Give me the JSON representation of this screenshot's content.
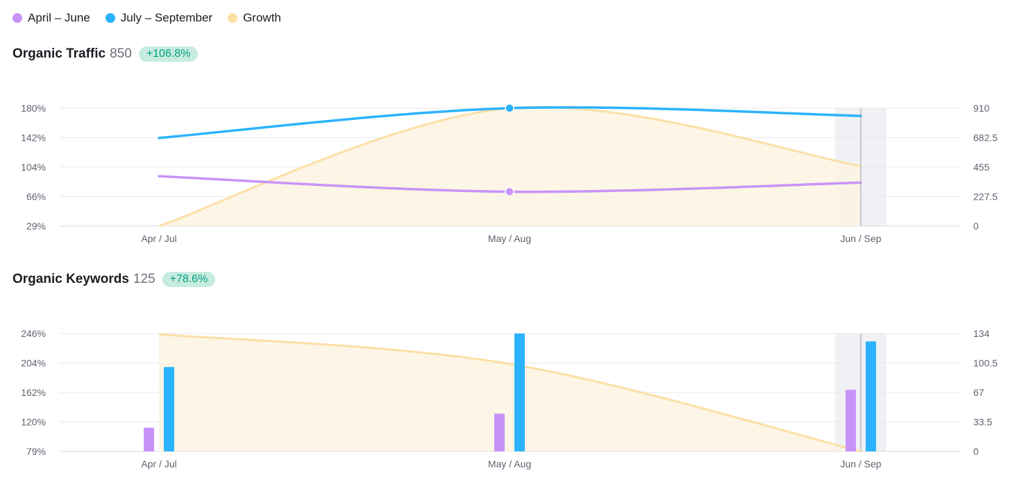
{
  "legend": [
    {
      "label": "April – June",
      "color": "#c893f8"
    },
    {
      "label": "July – September",
      "color": "#2bb3ff"
    },
    {
      "label": "Growth",
      "color": "#fcdfa5"
    }
  ],
  "charts": [
    {
      "title": "Organic Traffic",
      "count": "850",
      "badge": "+106.8%"
    },
    {
      "title": "Organic Keywords",
      "count": "125",
      "badge": "+78.6%"
    }
  ],
  "chart_data": [
    {
      "type": "line",
      "title": "Organic Traffic",
      "categories": [
        "Apr / Jul",
        "May / Aug",
        "Jun / Sep"
      ],
      "y_left_ticks": [
        "180%",
        "142%",
        "104%",
        "66%",
        "29%"
      ],
      "y_left_range": [
        29,
        180
      ],
      "y_right_ticks": [
        "910",
        "682.5",
        "455",
        "227.5",
        "0"
      ],
      "y_right_range": [
        0,
        910
      ],
      "series": [
        {
          "name": "April – June",
          "axis": "right",
          "style": "line",
          "values": [
            385,
            265,
            335
          ]
        },
        {
          "name": "July – September",
          "axis": "right",
          "style": "line",
          "values": [
            680,
            910,
            850
          ]
        },
        {
          "name": "Growth",
          "axis": "left",
          "style": "area",
          "values": [
            29,
            180,
            106
          ]
        }
      ],
      "markers_at": "May / Aug",
      "highlight_category": "Jun / Sep",
      "grid": true
    },
    {
      "type": "bar",
      "title": "Organic Keywords",
      "categories": [
        "Apr / Jul",
        "May / Aug",
        "Jun / Sep"
      ],
      "y_left_ticks": [
        "246%",
        "204%",
        "162%",
        "120%",
        "79%"
      ],
      "y_left_range": [
        79,
        246
      ],
      "y_right_ticks": [
        "134",
        "100.5",
        "67",
        "33.5",
        "0"
      ],
      "y_right_range": [
        0,
        134
      ],
      "series": [
        {
          "name": "April – June",
          "axis": "right",
          "style": "bar",
          "values": [
            27,
            43,
            70
          ]
        },
        {
          "name": "July – September",
          "axis": "right",
          "style": "bar",
          "values": [
            96,
            134,
            125
          ]
        },
        {
          "name": "Growth",
          "axis": "left",
          "style": "area",
          "values": [
            245,
            203,
            79
          ]
        }
      ],
      "highlight_category": "Jun / Sep",
      "grid": true
    }
  ]
}
